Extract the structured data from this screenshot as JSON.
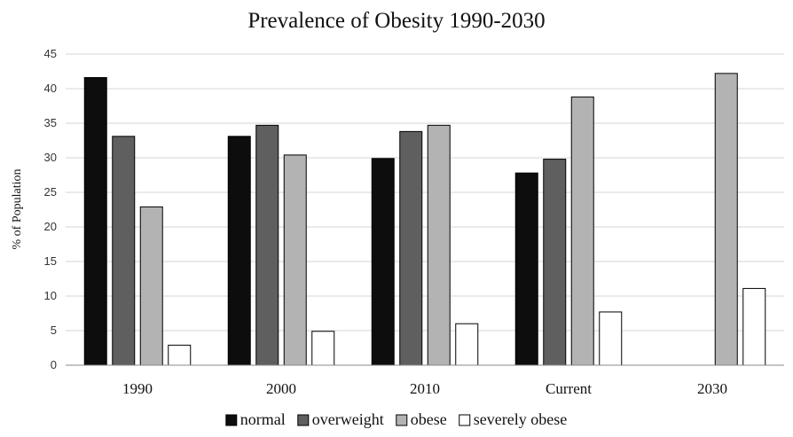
{
  "chart_data": {
    "type": "bar",
    "title": "Prevalence of Obesity 1990-2030",
    "xlabel": "",
    "ylabel": "% of Population",
    "ylim": [
      0,
      45
    ],
    "yticks": [
      0,
      5,
      10,
      15,
      20,
      25,
      30,
      35,
      40,
      45
    ],
    "grid": true,
    "legend_position": "bottom",
    "categories": [
      "1990",
      "2000",
      "2010",
      "Current",
      "2030"
    ],
    "series": [
      {
        "name": "normal",
        "color": "#0d0d0d",
        "values": [
          41.6,
          33.1,
          29.9,
          27.8,
          null
        ]
      },
      {
        "name": "overweight",
        "color": "#5f5f5f",
        "values": [
          33.1,
          34.7,
          33.8,
          29.8,
          null
        ]
      },
      {
        "name": "obese",
        "color": "#b3b3b3",
        "values": [
          22.9,
          30.4,
          34.7,
          38.8,
          42.2
        ]
      },
      {
        "name": "severely obese",
        "color": "#ffffff",
        "values": [
          2.9,
          4.9,
          6.0,
          7.7,
          11.1
        ]
      }
    ]
  }
}
